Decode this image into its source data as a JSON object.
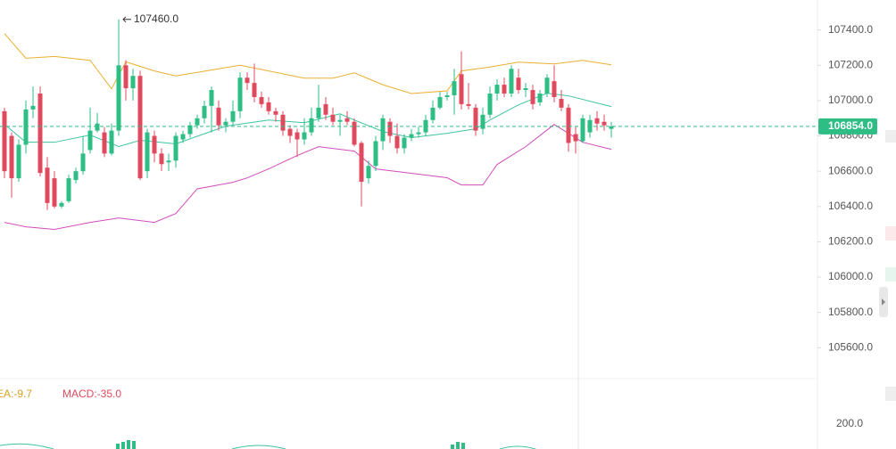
{
  "chart_data": {
    "type": "candlestick",
    "colors": {
      "up": "#2ebd85",
      "down": "#e04a5e"
    },
    "ylim": [
      105450,
      107570
    ],
    "yticks": [
      {
        "value": 107400,
        "label": "107400.0"
      },
      {
        "value": 107200,
        "label": "107200.0"
      },
      {
        "value": 107000,
        "label": "107000.0"
      },
      {
        "value": 106800,
        "label": "106800.0"
      },
      {
        "value": 106600,
        "label": "106600.0"
      },
      {
        "value": 106400,
        "label": "106400.0"
      },
      {
        "value": 106200,
        "label": "106200.0"
      },
      {
        "value": 106000,
        "label": "106000.0"
      },
      {
        "value": 105800,
        "label": "105800.0"
      },
      {
        "value": 105600,
        "label": "105600.0"
      }
    ],
    "high_annotation": {
      "value": 107460,
      "label": "107460.0",
      "index": 16
    },
    "last_price": {
      "value": 106854,
      "label": "106854.0"
    },
    "open": [
      106940,
      106800,
      106560,
      106750,
      106950,
      107040,
      106620,
      106560,
      106400,
      106430,
      106550,
      106600,
      106720,
      106830,
      106820,
      106700,
      106830,
      107200,
      107070,
      107140,
      106600,
      106800,
      106700,
      106650,
      106660,
      106780,
      106810,
      106860,
      106900,
      106970,
      106960,
      106860,
      106880,
      106940,
      107130,
      107100,
      107020,
      106990,
      106940,
      106920,
      106840,
      106820,
      106780,
      106820,
      106900,
      106980,
      106920,
      106880,
      106900,
      106880,
      106760,
      106560,
      106630,
      106770,
      106880,
      106800,
      106730,
      106790,
      106810,
      106820,
      106890,
      106960,
      107020,
      107030,
      107150,
      106980,
      106960,
      106840,
      106920,
      107040,
      107090,
      107040,
      107130,
      107060,
      107060,
      106990,
      107040,
      107110,
      107010,
      106960,
      106810,
      106770,
      106820,
      106900,
      106880,
      106840
    ],
    "high": [
      106960,
      106820,
      106780,
      107000,
      107080,
      107080,
      106680,
      106600,
      106430,
      106580,
      106620,
      106800,
      106960,
      106930,
      106850,
      106870,
      107460,
      107230,
      107180,
      107170,
      106840,
      106830,
      106730,
      106700,
      106820,
      106830,
      106880,
      106920,
      107000,
      107080,
      107000,
      106900,
      107000,
      107160,
      107160,
      107210,
      107050,
      107020,
      106960,
      106940,
      106860,
      106840,
      106900,
      106960,
      107090,
      107020,
      106960,
      106920,
      106940,
      106900,
      106770,
      106660,
      106800,
      106920,
      106900,
      106870,
      106810,
      106840,
      106850,
      106920,
      107000,
      107050,
      107050,
      107180,
      107280,
      107100,
      106980,
      106960,
      107080,
      107120,
      107130,
      107200,
      107180,
      107100,
      107090,
      107060,
      107150,
      107200,
      107060,
      106980,
      106850,
      106920,
      106920,
      106940,
      106920,
      106880
    ],
    "low": [
      106560,
      106450,
      106540,
      106700,
      106900,
      106570,
      106380,
      106390,
      106390,
      106420,
      106530,
      106580,
      106700,
      106820,
      106680,
      106690,
      106800,
      107000,
      107000,
      106550,
      106560,
      106650,
      106600,
      106600,
      106620,
      106760,
      106790,
      106840,
      106870,
      106820,
      106830,
      106820,
      106860,
      106900,
      107060,
      106990,
      106960,
      106920,
      106880,
      106800,
      106760,
      106680,
      106750,
      106800,
      106880,
      106890,
      106860,
      106800,
      106860,
      106740,
      106400,
      106530,
      106600,
      106720,
      106760,
      106700,
      106700,
      106770,
      106790,
      106800,
      106870,
      106950,
      107000,
      106920,
      106950,
      106950,
      106800,
      106810,
      106900,
      107000,
      107020,
      107020,
      107040,
      107020,
      106950,
      106970,
      107020,
      106990,
      106940,
      106710,
      106700,
      106760,
      106790,
      106830,
      106830,
      106790
    ],
    "close": [
      106600,
      106560,
      106750,
      106950,
      106970,
      106590,
      106420,
      106400,
      106420,
      106560,
      106600,
      106700,
      106830,
      106870,
      106700,
      106830,
      107200,
      107070,
      107140,
      106560,
      106820,
      106700,
      106640,
      106660,
      106800,
      106810,
      106860,
      106900,
      106970,
      107060,
      106860,
      106880,
      106940,
      107130,
      107100,
      107020,
      106980,
      106940,
      106920,
      106830,
      106800,
      106780,
      106820,
      106900,
      106960,
      106920,
      106880,
      106890,
      106880,
      106750,
      106540,
      106630,
      106770,
      106900,
      106800,
      106730,
      106790,
      106810,
      106820,
      106890,
      106960,
      107020,
      107030,
      107110,
      106980,
      106970,
      106830,
      106920,
      107040,
      107090,
      107040,
      107180,
      107060,
      107070,
      106980,
      107040,
      107130,
      107020,
      106960,
      106760,
      106770,
      106900,
      106890,
      106870,
      106860,
      106854
    ],
    "series": [
      {
        "name": "UB",
        "color": "#e9b030",
        "x": [
          0,
          3,
          7,
          12,
          15,
          17,
          21,
          24,
          30,
          33,
          37,
          42,
          46,
          49,
          53,
          57,
          62,
          64,
          68,
          72,
          77,
          81,
          85
        ],
        "values": [
          107380,
          107240,
          107250,
          107228,
          107067,
          107220,
          107168,
          107140,
          107180,
          107200,
          107168,
          107127,
          107127,
          107157,
          107090,
          107040,
          107055,
          107168,
          107190,
          107218,
          107208,
          107228,
          107203
        ]
      },
      {
        "name": "MB",
        "color": "#3cc4a0",
        "x": [
          0,
          3,
          7,
          12,
          16,
          19,
          24,
          31,
          37,
          42,
          47,
          49,
          53,
          57,
          62,
          66,
          68,
          72,
          76,
          79,
          85
        ],
        "values": [
          106865,
          106764,
          106764,
          106805,
          106740,
          106775,
          106755,
          106855,
          106890,
          106875,
          106925,
          106890,
          106825,
          106790,
          106815,
          106840,
          106890,
          106976,
          107042,
          107027,
          106966
        ]
      },
      {
        "name": "LB",
        "color": "#d24bbb",
        "x": [
          0,
          3,
          7,
          12,
          16,
          21,
          24,
          27,
          32,
          34,
          37,
          41,
          44,
          49,
          52,
          57,
          62,
          64,
          67,
          69,
          73,
          77,
          81,
          85
        ],
        "values": [
          106310,
          106285,
          106270,
          106310,
          106335,
          106310,
          106360,
          106500,
          106537,
          106562,
          106613,
          106689,
          106739,
          106714,
          106613,
          106588,
          106563,
          106522,
          106522,
          106638,
          106739,
          106865,
          106764,
          106724
        ]
      }
    ],
    "macd": {
      "dea": "EA:-9.7",
      "macd": "MACD:-35.0",
      "ytick": "200.0"
    }
  }
}
